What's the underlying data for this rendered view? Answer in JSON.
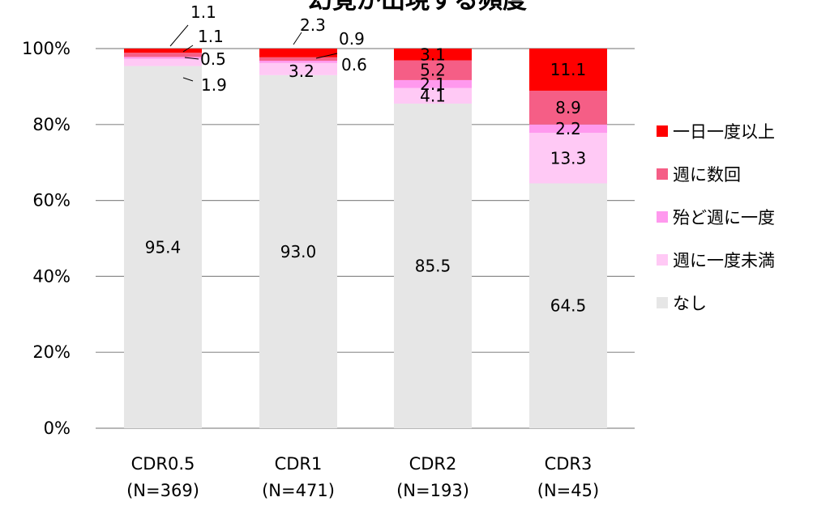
{
  "chart_data": {
    "type": "bar",
    "stacked": true,
    "title": "幻覚が出現する頻度",
    "ylim": [
      0,
      100
    ],
    "yticks": [
      "0%",
      "20%",
      "40%",
      "60%",
      "80%",
      "100%"
    ],
    "grid": true,
    "legend_position": "right",
    "categories": [
      {
        "name": "CDR0.5",
        "n": "(N=369)"
      },
      {
        "name": "CDR1",
        "n": "(N=471)"
      },
      {
        "name": "CDR2",
        "n": "(N=193)"
      },
      {
        "name": "CDR3",
        "n": "(N=45)"
      }
    ],
    "series": [
      {
        "name": "なし",
        "color": "#e6e6e6",
        "values": [
          95.4,
          93.0,
          85.5,
          64.5
        ],
        "labels": [
          "95.4",
          "93.0",
          "85.5",
          "64.5"
        ]
      },
      {
        "name": "週に一度未満",
        "color": "#ffc9f5",
        "values": [
          1.9,
          3.2,
          4.1,
          13.3
        ],
        "labels": [
          "1.9",
          "3.2",
          "4.1",
          "13.3"
        ]
      },
      {
        "name": "殆ど週に一度",
        "color": "#ff99ee",
        "values": [
          0.5,
          0.6,
          2.1,
          2.2
        ],
        "labels": [
          "0.5",
          "0.6",
          "2.1",
          "2.2"
        ]
      },
      {
        "name": "週に数回",
        "color": "#f55e86",
        "values": [
          1.1,
          0.9,
          5.2,
          8.9
        ],
        "labels": [
          "1.1",
          "0.9",
          "5.2",
          "8.9"
        ]
      },
      {
        "name": "一日一度以上",
        "color": "#ff0000",
        "values": [
          1.1,
          2.3,
          3.1,
          11.1
        ],
        "labels": [
          "1.1",
          "2.3",
          "3.1",
          "11.1"
        ]
      }
    ],
    "legend_order": [
      "一日一度以上",
      "週に数回",
      "殆ど週に一度",
      "週に一度未満",
      "なし"
    ]
  }
}
